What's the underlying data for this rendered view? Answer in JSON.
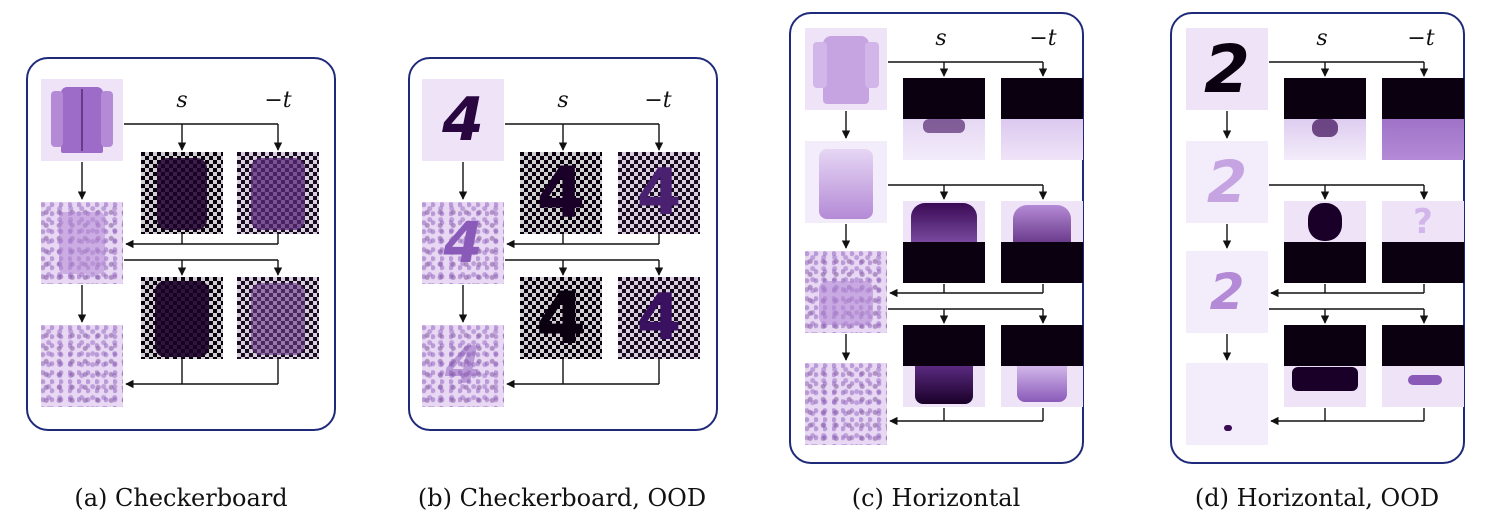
{
  "panels": [
    {
      "id": "a",
      "caption": "(a)  Checkerboard",
      "mode": "checker",
      "content": "jacket",
      "s_label": "s",
      "t_label": "−t"
    },
    {
      "id": "b",
      "caption": "(b)  Checkerboard, OOD",
      "mode": "checker",
      "content": "4",
      "s_label": "s",
      "t_label": "−t"
    },
    {
      "id": "c",
      "caption": "(c)  Horizontal",
      "mode": "horizontal",
      "content": "shirt",
      "s_label": "s",
      "t_label": "−t"
    },
    {
      "id": "d",
      "caption": "(d)  Horizontal, OOD",
      "mode": "horizontal",
      "content": "2",
      "s_label": "s",
      "t_label": "−t"
    }
  ],
  "colors": {
    "panel_border": "#1f2a7a",
    "purple_light": "#efe3f8",
    "purple_mid": "#b48ad6",
    "purple_dark": "#3a0a55",
    "black": "#0b0010",
    "wire": "#111111"
  }
}
